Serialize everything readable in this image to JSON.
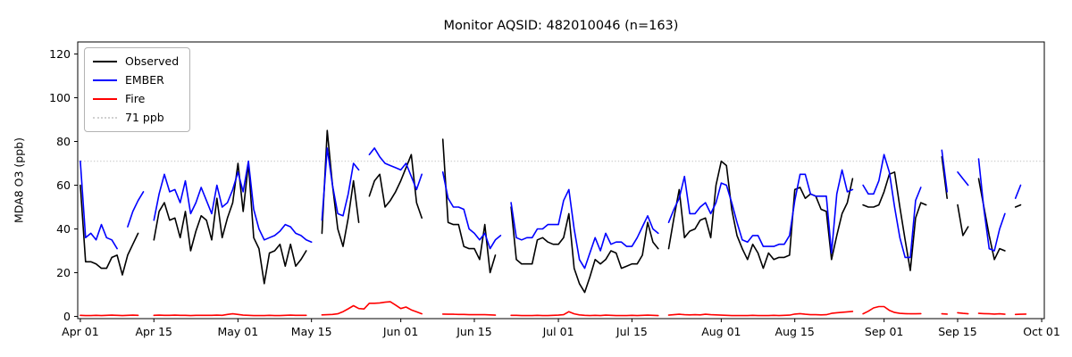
{
  "chart_data": {
    "type": "line",
    "title": "Monitor AQSID: 482010046 (n=163)",
    "ylabel": "MDA8 O3 (ppb)",
    "xlabel": "",
    "grid": false,
    "legend_position": "upper left",
    "x_unit": "days since Apr 01",
    "x_tick_days": [
      0,
      14,
      30,
      44,
      61,
      75,
      91,
      105,
      122,
      136,
      153,
      167,
      183
    ],
    "x_tick_labels": [
      "Apr 01",
      "Apr 15",
      "May 01",
      "May 15",
      "Jun 01",
      "Jun 15",
      "Jul 01",
      "Jul 15",
      "Aug 01",
      "Aug 15",
      "Sep 01",
      "Sep 15",
      "Oct 01"
    ],
    "y_ticks": [
      0,
      20,
      40,
      60,
      80,
      100,
      120
    ],
    "ylim": [
      -1,
      125.5
    ],
    "xlim_days": [
      -0.5,
      183.5
    ],
    "threshold": {
      "value": 71,
      "label": "71 ppb",
      "color": "#d0d0d0",
      "style": "dotted"
    },
    "colors": {
      "observed": "#000000",
      "ember": "#0000ff",
      "fire": "#ff0000"
    },
    "legend": [
      {
        "label": "Observed",
        "color": "#000000",
        "style": "solid"
      },
      {
        "label": "EMBER",
        "color": "#0000ff",
        "style": "solid"
      },
      {
        "label": "Fire",
        "color": "#ff0000",
        "style": "solid"
      },
      {
        "label": "71 ppb",
        "color": "#d0d0d0",
        "style": "dotted"
      }
    ],
    "series": [
      {
        "name": "Observed",
        "color": "#000000",
        "values": [
          60,
          25,
          25,
          24,
          22,
          22,
          27,
          28,
          19,
          28,
          33,
          38,
          null,
          null,
          35,
          48,
          52,
          44,
          45,
          36,
          48,
          30,
          39,
          46,
          44,
          35,
          54,
          36,
          45,
          52,
          70,
          48,
          70,
          36,
          31,
          15,
          29,
          30,
          33,
          23,
          33,
          23,
          26,
          30,
          null,
          null,
          38,
          85,
          60,
          40,
          32,
          45,
          62,
          43,
          null,
          55,
          62,
          65,
          50,
          53,
          57,
          62,
          68,
          74,
          52,
          45,
          null,
          null,
          null,
          81,
          43,
          42,
          42,
          32,
          31,
          31,
          26,
          42,
          20,
          28,
          null,
          null,
          50,
          26,
          24,
          24,
          24,
          35,
          36,
          34,
          33,
          33,
          36,
          47,
          22,
          15,
          11,
          18,
          26,
          24,
          26,
          30,
          29,
          22,
          23,
          24,
          24,
          28,
          43,
          34,
          31,
          null,
          31,
          45,
          58,
          36,
          39,
          40,
          44,
          45,
          36,
          60,
          71,
          69,
          49,
          37,
          31,
          26,
          33,
          29,
          22,
          29,
          26,
          27,
          27,
          28,
          58,
          59,
          54,
          56,
          55,
          49,
          48,
          26,
          37,
          47,
          52,
          63,
          null,
          51,
          50,
          50,
          51,
          57,
          65,
          66,
          50,
          35,
          21,
          45,
          52,
          51,
          null,
          null,
          73,
          54,
          null,
          51,
          37,
          41,
          null,
          63,
          50,
          37,
          26,
          31,
          30,
          null,
          50,
          51,
          null,
          null,
          null
        ]
      },
      {
        "name": "EMBER",
        "color": "#0000ff",
        "values": [
          71,
          36,
          38,
          35,
          42,
          36,
          35,
          31,
          null,
          41,
          48,
          53,
          57,
          null,
          44,
          56,
          65,
          57,
          58,
          52,
          62,
          47,
          52,
          59,
          53,
          47,
          60,
          50,
          52,
          58,
          66,
          57,
          71,
          49,
          40,
          35,
          36,
          37,
          39,
          42,
          41,
          38,
          37,
          35,
          34,
          null,
          44,
          77,
          60,
          47,
          46,
          56,
          70,
          67,
          null,
          74,
          77,
          73,
          70,
          69,
          68,
          67,
          70,
          64,
          58,
          65,
          null,
          null,
          null,
          66,
          54,
          50,
          50,
          49,
          40,
          38,
          35,
          38,
          31,
          35,
          37,
          null,
          52,
          36,
          35,
          36,
          36,
          40,
          40,
          42,
          42,
          42,
          53,
          58,
          40,
          26,
          22,
          29,
          36,
          30,
          38,
          33,
          34,
          34,
          32,
          32,
          36,
          41,
          46,
          40,
          38,
          null,
          43,
          49,
          54,
          64,
          47,
          47,
          50,
          52,
          47,
          52,
          61,
          60,
          52,
          43,
          35,
          34,
          37,
          37,
          32,
          32,
          32,
          33,
          33,
          37,
          53,
          65,
          65,
          56,
          55,
          55,
          55,
          29,
          56,
          67,
          57,
          58,
          null,
          60,
          56,
          56,
          62,
          74,
          66,
          50,
          36,
          27,
          27,
          53,
          59,
          null,
          null,
          null,
          76,
          57,
          null,
          66,
          63,
          60,
          null,
          72,
          49,
          31,
          30,
          40,
          47,
          null,
          54,
          60,
          null,
          null,
          null
        ]
      },
      {
        "name": "Fire",
        "color": "#ff0000",
        "values": [
          0.5,
          0.4,
          0.4,
          0.5,
          0.4,
          0.5,
          0.6,
          0.5,
          0.4,
          0.5,
          0.6,
          0.5,
          null,
          null,
          0.5,
          0.6,
          0.5,
          0.5,
          0.6,
          0.5,
          0.5,
          0.4,
          0.5,
          0.5,
          0.5,
          0.5,
          0.6,
          0.5,
          0.9,
          1.2,
          0.9,
          0.6,
          0.5,
          0.4,
          0.4,
          0.4,
          0.5,
          0.4,
          0.4,
          0.5,
          0.6,
          0.5,
          0.5,
          0.5,
          null,
          null,
          0.7,
          0.8,
          0.9,
          1.2,
          2.2,
          3.5,
          4.9,
          3.6,
          3.4,
          6.0,
          6.0,
          6.2,
          6.5,
          6.7,
          5.2,
          3.6,
          4.3,
          3.0,
          2.1,
          1.2,
          null,
          null,
          null,
          1.1,
          1.0,
          1.0,
          0.9,
          0.9,
          0.8,
          0.8,
          0.8,
          0.8,
          0.7,
          0.6,
          null,
          null,
          0.5,
          0.5,
          0.4,
          0.4,
          0.4,
          0.5,
          0.4,
          0.4,
          0.5,
          0.6,
          0.8,
          2.2,
          1.2,
          0.7,
          0.5,
          0.4,
          0.5,
          0.4,
          0.6,
          0.5,
          0.4,
          0.4,
          0.4,
          0.5,
          0.4,
          0.5,
          0.6,
          0.5,
          0.4,
          null,
          0.6,
          0.8,
          1.0,
          0.8,
          0.7,
          0.8,
          0.7,
          1.0,
          0.8,
          0.7,
          0.6,
          0.5,
          0.4,
          0.4,
          0.4,
          0.4,
          0.5,
          0.4,
          0.4,
          0.4,
          0.5,
          0.4,
          0.5,
          0.6,
          1.1,
          1.3,
          1.0,
          0.8,
          0.8,
          0.7,
          0.8,
          1.4,
          1.7,
          1.9,
          2.1,
          2.3,
          null,
          1.2,
          2.4,
          3.9,
          4.5,
          4.5,
          2.8,
          1.8,
          1.4,
          1.3,
          1.2,
          1.2,
          1.3,
          null,
          null,
          null,
          1.2,
          1.1,
          null,
          1.7,
          1.4,
          1.2,
          null,
          1.4,
          1.3,
          1.2,
          1.1,
          1.2,
          1.0,
          null,
          0.9,
          1.0,
          1.1,
          null,
          null
        ]
      }
    ]
  }
}
